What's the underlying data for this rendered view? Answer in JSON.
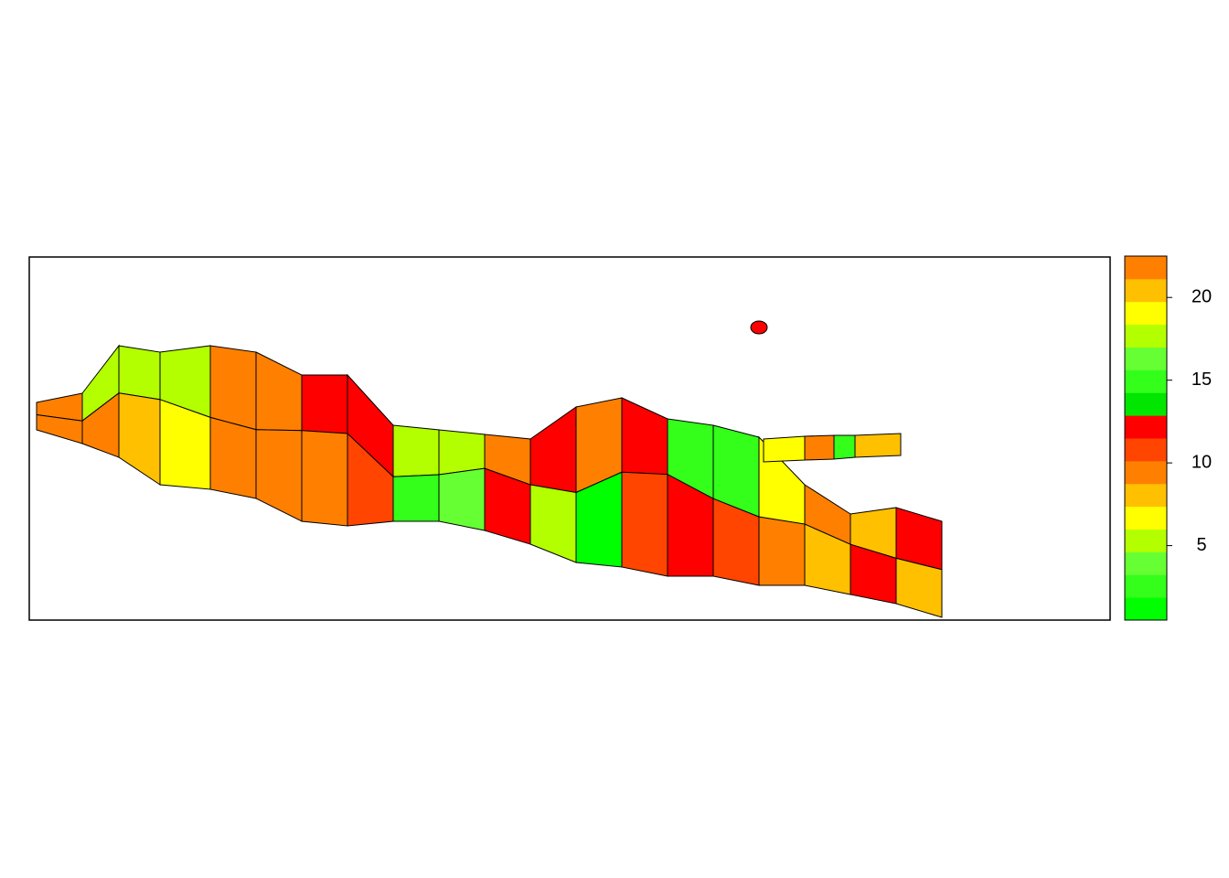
{
  "chart_data": {
    "type": "choropleth",
    "values": [
      10,
      10,
      17,
      10,
      17,
      8.5,
      18.3,
      19.5,
      22,
      10,
      10,
      10,
      12.5,
      10,
      12.5,
      11,
      5.5,
      2.7,
      5.5,
      4,
      10,
      12.5,
      12.5,
      5.5,
      10,
      1.2,
      12.5,
      11,
      15.5,
      12.5,
      15.5,
      11,
      19.5,
      10,
      10,
      8.5,
      21,
      12.5,
      12.5,
      8.5,
      19.5,
      10,
      15.5,
      21,
      12.5
    ],
    "colors": [
      "#00ff00",
      "#33ff1a",
      "#66ff33",
      "#b3ff00",
      "#ffff00",
      "#ffc000",
      "#ff8000",
      "#ff4500",
      "#ff0000",
      "#00e600",
      "#33ff1a",
      "#66ff33",
      "#b3ff00",
      "#ffff00",
      "#ffc000",
      "#ff8000"
    ],
    "ylim": [
      0.5,
      22.5
    ],
    "yticks": [
      5,
      10,
      15,
      20
    ]
  }
}
